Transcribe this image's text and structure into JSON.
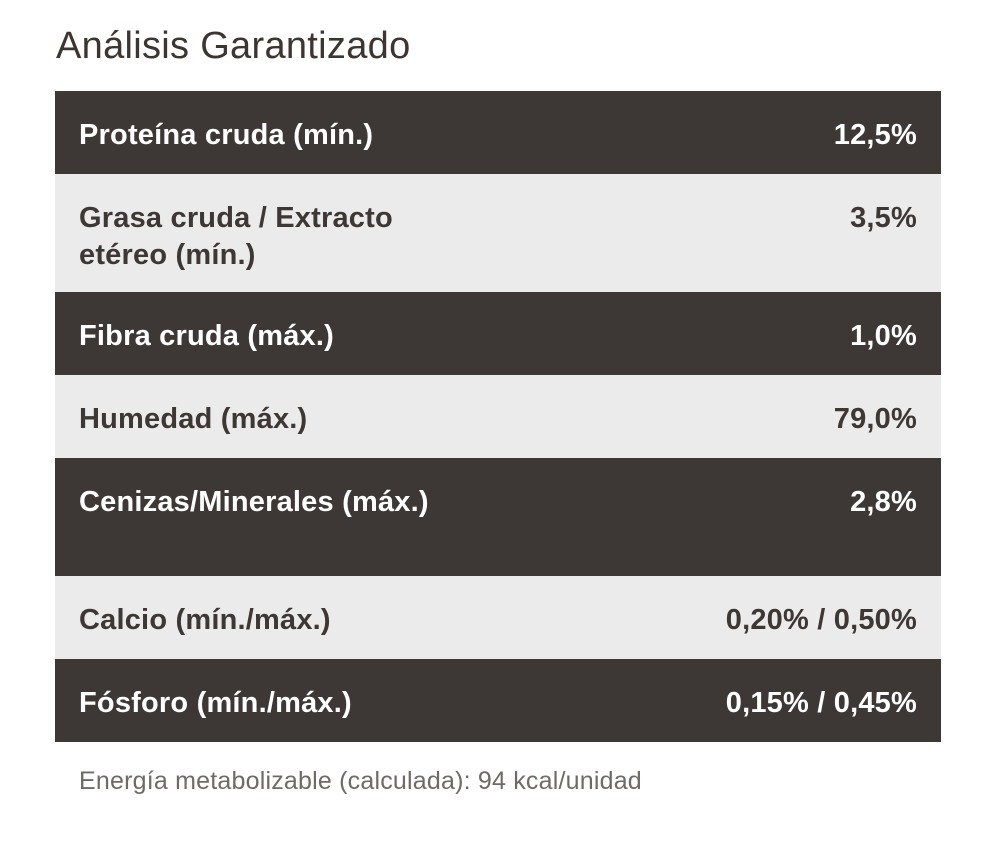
{
  "title": "Análisis Garantizado",
  "rows": [
    {
      "label": "Proteína cruda (mín.)",
      "value": "12,5%"
    },
    {
      "label": "Grasa cruda / Extracto etéreo (mín.)",
      "value": "3,5%"
    },
    {
      "label": "Fibra cruda (máx.)",
      "value": "1,0%"
    },
    {
      "label": "Humedad (máx.)",
      "value": "79,0%"
    },
    {
      "label": "Cenizas/Minerales (máx.)",
      "value": "2,8%"
    },
    {
      "label": "Calcio (mín./máx.)",
      "value": "0,20% / 0,50%"
    },
    {
      "label": "Fósforo (mín./máx.)",
      "value": "0,15% / 0,45%"
    }
  ],
  "footnote": "Energía metabolizable (calculada): 94 kcal/unidad",
  "colors": {
    "dark_row": "#3d3735",
    "light_row": "#ebebeb",
    "title_text": "#3c3532",
    "footnote_text": "#6f6a67"
  }
}
